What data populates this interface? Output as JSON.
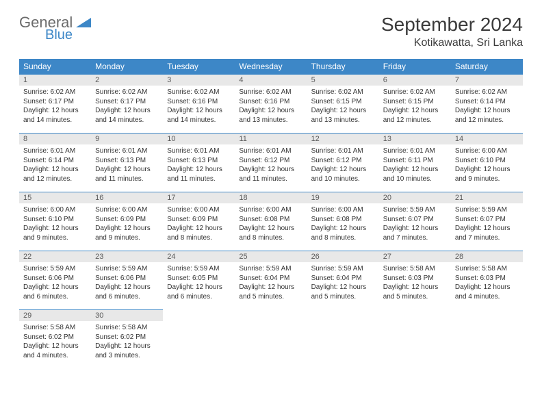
{
  "brand": {
    "general": "General",
    "blue": "Blue"
  },
  "title": {
    "month": "September 2024",
    "location": "Kotikawatta, Sri Lanka"
  },
  "weekdays": [
    "Sunday",
    "Monday",
    "Tuesday",
    "Wednesday",
    "Thursday",
    "Friday",
    "Saturday"
  ],
  "style": {
    "header_bg": "#3d87c7",
    "header_fg": "#ffffff",
    "daynum_bg": "#e8e8e8",
    "cell_border": "#3d87c7",
    "body_font_size": 10,
    "header_font_size": 12,
    "title_font_size": 28,
    "location_font_size": 16
  },
  "weeks": [
    [
      {
        "n": "1",
        "sr": "6:02 AM",
        "ss": "6:17 PM",
        "dl": "12 hours and 14 minutes."
      },
      {
        "n": "2",
        "sr": "6:02 AM",
        "ss": "6:17 PM",
        "dl": "12 hours and 14 minutes."
      },
      {
        "n": "3",
        "sr": "6:02 AM",
        "ss": "6:16 PM",
        "dl": "12 hours and 14 minutes."
      },
      {
        "n": "4",
        "sr": "6:02 AM",
        "ss": "6:16 PM",
        "dl": "12 hours and 13 minutes."
      },
      {
        "n": "5",
        "sr": "6:02 AM",
        "ss": "6:15 PM",
        "dl": "12 hours and 13 minutes."
      },
      {
        "n": "6",
        "sr": "6:02 AM",
        "ss": "6:15 PM",
        "dl": "12 hours and 12 minutes."
      },
      {
        "n": "7",
        "sr": "6:02 AM",
        "ss": "6:14 PM",
        "dl": "12 hours and 12 minutes."
      }
    ],
    [
      {
        "n": "8",
        "sr": "6:01 AM",
        "ss": "6:14 PM",
        "dl": "12 hours and 12 minutes."
      },
      {
        "n": "9",
        "sr": "6:01 AM",
        "ss": "6:13 PM",
        "dl": "12 hours and 11 minutes."
      },
      {
        "n": "10",
        "sr": "6:01 AM",
        "ss": "6:13 PM",
        "dl": "12 hours and 11 minutes."
      },
      {
        "n": "11",
        "sr": "6:01 AM",
        "ss": "6:12 PM",
        "dl": "12 hours and 11 minutes."
      },
      {
        "n": "12",
        "sr": "6:01 AM",
        "ss": "6:12 PM",
        "dl": "12 hours and 10 minutes."
      },
      {
        "n": "13",
        "sr": "6:01 AM",
        "ss": "6:11 PM",
        "dl": "12 hours and 10 minutes."
      },
      {
        "n": "14",
        "sr": "6:00 AM",
        "ss": "6:10 PM",
        "dl": "12 hours and 9 minutes."
      }
    ],
    [
      {
        "n": "15",
        "sr": "6:00 AM",
        "ss": "6:10 PM",
        "dl": "12 hours and 9 minutes."
      },
      {
        "n": "16",
        "sr": "6:00 AM",
        "ss": "6:09 PM",
        "dl": "12 hours and 9 minutes."
      },
      {
        "n": "17",
        "sr": "6:00 AM",
        "ss": "6:09 PM",
        "dl": "12 hours and 8 minutes."
      },
      {
        "n": "18",
        "sr": "6:00 AM",
        "ss": "6:08 PM",
        "dl": "12 hours and 8 minutes."
      },
      {
        "n": "19",
        "sr": "6:00 AM",
        "ss": "6:08 PM",
        "dl": "12 hours and 8 minutes."
      },
      {
        "n": "20",
        "sr": "5:59 AM",
        "ss": "6:07 PM",
        "dl": "12 hours and 7 minutes."
      },
      {
        "n": "21",
        "sr": "5:59 AM",
        "ss": "6:07 PM",
        "dl": "12 hours and 7 minutes."
      }
    ],
    [
      {
        "n": "22",
        "sr": "5:59 AM",
        "ss": "6:06 PM",
        "dl": "12 hours and 6 minutes."
      },
      {
        "n": "23",
        "sr": "5:59 AM",
        "ss": "6:06 PM",
        "dl": "12 hours and 6 minutes."
      },
      {
        "n": "24",
        "sr": "5:59 AM",
        "ss": "6:05 PM",
        "dl": "12 hours and 6 minutes."
      },
      {
        "n": "25",
        "sr": "5:59 AM",
        "ss": "6:04 PM",
        "dl": "12 hours and 5 minutes."
      },
      {
        "n": "26",
        "sr": "5:59 AM",
        "ss": "6:04 PM",
        "dl": "12 hours and 5 minutes."
      },
      {
        "n": "27",
        "sr": "5:58 AM",
        "ss": "6:03 PM",
        "dl": "12 hours and 5 minutes."
      },
      {
        "n": "28",
        "sr": "5:58 AM",
        "ss": "6:03 PM",
        "dl": "12 hours and 4 minutes."
      }
    ],
    [
      {
        "n": "29",
        "sr": "5:58 AM",
        "ss": "6:02 PM",
        "dl": "12 hours and 4 minutes."
      },
      {
        "n": "30",
        "sr": "5:58 AM",
        "ss": "6:02 PM",
        "dl": "12 hours and 3 minutes."
      },
      null,
      null,
      null,
      null,
      null
    ]
  ],
  "labels": {
    "sunrise": "Sunrise: ",
    "sunset": "Sunset: ",
    "daylight": "Daylight: "
  }
}
